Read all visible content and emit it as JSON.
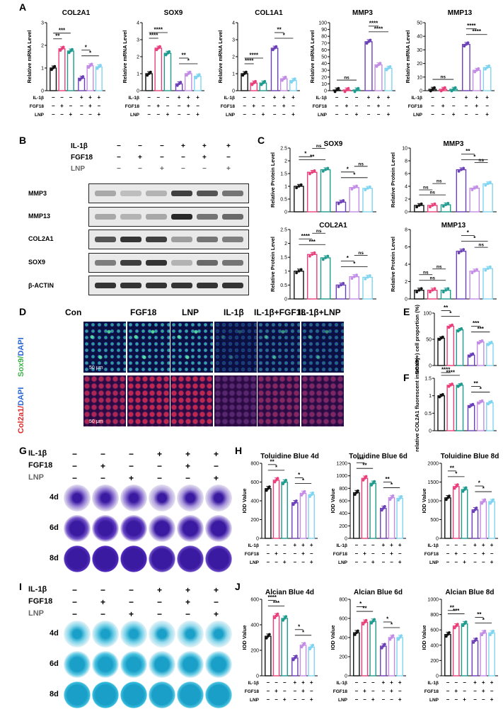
{
  "panel_letters": [
    "A",
    "B",
    "C",
    "D",
    "E",
    "F",
    "G",
    "H",
    "I",
    "J"
  ],
  "groups_short": [
    "",
    "",
    "",
    "",
    "",
    ""
  ],
  "row_labels": {
    "il1b": "IL-1β",
    "fgf18": "FGF18",
    "lnp": "LNP"
  },
  "signs": {
    "il1b": [
      "−",
      "−",
      "−",
      "+",
      "+",
      "+"
    ],
    "fgf18": [
      "−",
      "+",
      "−",
      "−",
      "+",
      "−"
    ],
    "lnp": [
      "−",
      "−",
      "+",
      "−",
      "−",
      "+"
    ]
  },
  "colors": [
    "#111111",
    "#e83f7b",
    "#1e9a8e",
    "#6b3fb8",
    "#c28be6",
    "#7fd4f0"
  ],
  "blot": {
    "labels": [
      "MMP3",
      "MMP13",
      "COL2A1",
      "SOX9",
      "β-ACTIN"
    ],
    "treat_rows": [
      "IL-1β",
      "FGF18",
      "LNP"
    ]
  },
  "panel_d": {
    "columns": [
      "Con",
      "FGF18",
      "LNP",
      "IL-1β",
      "IL-1β+FGF18",
      "IL-1β+LNP"
    ],
    "row1": [
      "Sox9/",
      "DAPI"
    ],
    "row2": [
      "Col2a1/",
      "DAPI"
    ],
    "scale1": "50 μm",
    "scale2": "50 μm"
  },
  "dish_rows": [
    "4d",
    "6d",
    "8d"
  ],
  "chart_data": [
    {
      "panel": "A",
      "type": "bar",
      "title": "COL2A1",
      "ylabel": "Relative mRNA Level",
      "ylim": [
        0,
        3
      ],
      "ticks": [
        0,
        1,
        2,
        3
      ],
      "values": [
        1.0,
        1.85,
        1.75,
        0.55,
        1.1,
        1.05
      ],
      "sig": [
        {
          "t": "**",
          "a": 0,
          "b": 1
        },
        {
          "t": "***",
          "a": 0,
          "b": 2
        },
        {
          "t": "*",
          "a": 3,
          "b": 5
        },
        {
          "t": "*",
          "a": 3,
          "b": 4
        }
      ]
    },
    {
      "panel": "A",
      "type": "bar",
      "title": "SOX9",
      "ylabel": "Relative mRNA Level",
      "ylim": [
        0,
        4
      ],
      "ticks": [
        0,
        1,
        2,
        3,
        4
      ],
      "values": [
        1.0,
        2.5,
        2.2,
        0.4,
        1.0,
        0.85
      ],
      "sig": [
        {
          "t": "****",
          "a": 0,
          "b": 1
        },
        {
          "t": "****",
          "a": 0,
          "b": 2
        },
        {
          "t": "*",
          "a": 3,
          "b": 5
        },
        {
          "t": "**",
          "a": 3,
          "b": 4
        }
      ]
    },
    {
      "panel": "A",
      "type": "bar",
      "title": "COL1A1",
      "ylabel": "Relative mRNA Level",
      "ylim": [
        0,
        4
      ],
      "ticks": [
        0,
        1,
        2,
        3,
        4
      ],
      "values": [
        1.0,
        0.45,
        0.45,
        2.5,
        0.7,
        0.6
      ],
      "sig": [
        {
          "t": "****",
          "a": 0,
          "b": 1
        },
        {
          "t": "****",
          "a": 0,
          "b": 2
        },
        {
          "t": "*",
          "a": 3,
          "b": 5
        },
        {
          "t": "**",
          "a": 3,
          "b": 4
        }
      ]
    },
    {
      "panel": "A",
      "type": "bar",
      "title": "MMP3",
      "ylabel": "Relative mRNA Level",
      "ylim": [
        0,
        100
      ],
      "ticks": [
        0,
        10,
        20,
        30,
        40,
        50,
        60,
        70,
        80,
        90,
        100
      ],
      "values": [
        1.0,
        1.0,
        1.0,
        72,
        38,
        33
      ],
      "sig": [
        {
          "t": "ns",
          "a": 0,
          "b": 2
        },
        {
          "t": "****",
          "a": 3,
          "b": 5
        },
        {
          "t": "****",
          "a": 3,
          "b": 4
        }
      ]
    },
    {
      "panel": "A",
      "type": "bar",
      "title": "MMP13",
      "ylabel": "Relative mRNA Level",
      "ylim": [
        0,
        50
      ],
      "ticks": [
        0,
        10,
        20,
        30,
        40,
        50
      ],
      "values": [
        1.0,
        1.0,
        1.0,
        34,
        15,
        17
      ],
      "sig": [
        {
          "t": "ns",
          "a": 0,
          "b": 2
        },
        {
          "t": "****",
          "a": 3,
          "b": 5
        },
        {
          "t": "****",
          "a": 3,
          "b": 4
        }
      ]
    },
    {
      "panel": "C",
      "type": "bar",
      "title": "SOX9",
      "ylabel": "Relative Protein Level",
      "ylim": [
        0,
        2.5
      ],
      "ticks": [
        0.0,
        0.5,
        1.0,
        1.5,
        2.0,
        2.5
      ],
      "values": [
        1.0,
        1.55,
        1.65,
        0.38,
        0.95,
        0.92
      ],
      "sig": [
        {
          "t": "**",
          "a": 0,
          "b": 2
        },
        {
          "t": "*",
          "a": 0,
          "b": 1
        },
        {
          "t": "ns",
          "a": 1,
          "b": 2
        },
        {
          "t": "*",
          "a": 3,
          "b": 5
        },
        {
          "t": "*",
          "a": 3,
          "b": 4
        },
        {
          "t": "ns",
          "a": 4,
          "b": 5
        }
      ]
    },
    {
      "panel": "C",
      "type": "bar",
      "title": "MMP3",
      "ylabel": "Relative Protein Level",
      "ylim": [
        0,
        10
      ],
      "ticks": [
        0,
        2,
        4,
        6,
        8,
        10
      ],
      "values": [
        1.0,
        1.0,
        1.1,
        6.6,
        3.7,
        4.4
      ],
      "sig": [
        {
          "t": "ns",
          "a": 0,
          "b": 2
        },
        {
          "t": "ns",
          "a": 0,
          "b": 1
        },
        {
          "t": "ns",
          "a": 1,
          "b": 2
        },
        {
          "t": "*",
          "a": 3,
          "b": 5
        },
        {
          "t": "**",
          "a": 3,
          "b": 4
        },
        {
          "t": "ns",
          "a": 4,
          "b": 5
        }
      ]
    },
    {
      "panel": "C",
      "type": "bar",
      "title": "COL2A1",
      "ylabel": "Relative Protein Level",
      "ylim": [
        0,
        2.5
      ],
      "ticks": [
        0.0,
        0.5,
        1.0,
        1.5,
        2.0,
        2.5
      ],
      "values": [
        1.0,
        1.6,
        1.48,
        0.5,
        0.8,
        0.78
      ],
      "sig": [
        {
          "t": "***",
          "a": 0,
          "b": 2
        },
        {
          "t": "****",
          "a": 0,
          "b": 1
        },
        {
          "t": "ns",
          "a": 1,
          "b": 2
        },
        {
          "t": "*",
          "a": 3,
          "b": 5
        },
        {
          "t": "*",
          "a": 3,
          "b": 4
        },
        {
          "t": "ns",
          "a": 4,
          "b": 5
        }
      ]
    },
    {
      "panel": "C",
      "type": "bar",
      "title": "MMP13",
      "ylabel": "Relative Protein Level",
      "ylim": [
        0,
        8
      ],
      "ticks": [
        0,
        2,
        4,
        6,
        8
      ],
      "values": [
        1.0,
        1.0,
        1.0,
        5.5,
        3.2,
        3.5
      ],
      "sig": [
        {
          "t": "ns",
          "a": 0,
          "b": 2
        },
        {
          "t": "ns",
          "a": 0,
          "b": 1
        },
        {
          "t": "ns",
          "a": 1,
          "b": 2
        },
        {
          "t": "*",
          "a": 3,
          "b": 5
        },
        {
          "t": "*",
          "a": 3,
          "b": 4
        },
        {
          "t": "ns",
          "a": 4,
          "b": 5
        }
      ]
    },
    {
      "panel": "E",
      "type": "bar",
      "title": "",
      "ylabel": "SOX9(+) cell proportion (%)",
      "ylim": [
        0,
        100
      ],
      "ticks": [
        0,
        50,
        100
      ],
      "values": [
        52,
        75,
        68,
        20,
        45,
        42
      ],
      "sig": [
        {
          "t": "*",
          "a": 0,
          "b": 2
        },
        {
          "t": "**",
          "a": 0,
          "b": 1
        },
        {
          "t": "***",
          "a": 3,
          "b": 5
        },
        {
          "t": "***",
          "a": 3,
          "b": 4
        }
      ]
    },
    {
      "panel": "F",
      "type": "bar",
      "title": "",
      "ylabel": "relative COL2A1 fluorescent intensity",
      "ylim": [
        0,
        1.5
      ],
      "ticks": [
        0.0,
        0.5,
        1.0,
        1.5
      ],
      "values": [
        1.0,
        1.3,
        1.3,
        0.72,
        0.82,
        0.8
      ],
      "sig": [
        {
          "t": "****",
          "a": 0,
          "b": 2
        },
        {
          "t": "****",
          "a": 0,
          "b": 1
        },
        {
          "t": "*",
          "a": 3,
          "b": 5
        },
        {
          "t": "**",
          "a": 3,
          "b": 4
        }
      ]
    },
    {
      "panel": "H",
      "type": "bar",
      "title": "Toluidine Blue 4d",
      "ylabel": "IOD Value",
      "ylim": [
        0,
        800
      ],
      "ticks": [
        0,
        200,
        400,
        600,
        800
      ],
      "values": [
        530,
        620,
        600,
        380,
        480,
        465
      ],
      "sig": [
        {
          "t": "*",
          "a": 0,
          "b": 2
        },
        {
          "t": "**",
          "a": 0,
          "b": 1
        },
        {
          "t": "*",
          "a": 3,
          "b": 5
        },
        {
          "t": "*",
          "a": 3,
          "b": 4
        }
      ]
    },
    {
      "panel": "H",
      "type": "bar",
      "title": "Toluidine Blue 6d",
      "ylabel": "IOD Value",
      "ylim": [
        0,
        1200
      ],
      "ticks": [
        0,
        200,
        400,
        600,
        800,
        1000,
        1200
      ],
      "values": [
        730,
        960,
        880,
        480,
        650,
        640
      ],
      "sig": [
        {
          "t": "**",
          "a": 0,
          "b": 2
        },
        {
          "t": "***",
          "a": 0,
          "b": 1
        },
        {
          "t": "*",
          "a": 3,
          "b": 5
        },
        {
          "t": "**",
          "a": 3,
          "b": 4
        }
      ]
    },
    {
      "panel": "H",
      "type": "bar",
      "title": "Toluidine Blue 8d",
      "ylabel": "IOD Value",
      "ylim": [
        0,
        2000
      ],
      "ticks": [
        0,
        500,
        1000,
        1500,
        2000
      ],
      "values": [
        1080,
        1380,
        1300,
        760,
        980,
        980
      ],
      "sig": [
        {
          "t": "*",
          "a": 0,
          "b": 2
        },
        {
          "t": "**",
          "a": 0,
          "b": 1
        },
        {
          "t": "*",
          "a": 3,
          "b": 5
        },
        {
          "t": "*",
          "a": 3,
          "b": 4
        }
      ]
    },
    {
      "panel": "J",
      "type": "bar",
      "title": "Alcian Blue 4d",
      "ylabel": "IOD Value",
      "ylim": [
        0,
        600
      ],
      "ticks": [
        0,
        200,
        400,
        600
      ],
      "values": [
        310,
        470,
        450,
        140,
        240,
        225
      ],
      "sig": [
        {
          "t": "***",
          "a": 0,
          "b": 2
        },
        {
          "t": "****",
          "a": 0,
          "b": 1
        },
        {
          "t": "*",
          "a": 3,
          "b": 5
        },
        {
          "t": "*",
          "a": 3,
          "b": 4
        }
      ]
    },
    {
      "panel": "J",
      "type": "bar",
      "title": "Alcian Blue 6d",
      "ylabel": "IOD Value",
      "ylim": [
        0,
        800
      ],
      "ticks": [
        0,
        200,
        400,
        600,
        800
      ],
      "values": [
        450,
        560,
        570,
        310,
        400,
        400
      ],
      "sig": [
        {
          "t": "**",
          "a": 0,
          "b": 2
        },
        {
          "t": "*",
          "a": 0,
          "b": 1
        },
        {
          "t": "*",
          "a": 3,
          "b": 5
        },
        {
          "t": "*",
          "a": 3,
          "b": 4
        }
      ]
    },
    {
      "panel": "J",
      "type": "bar",
      "title": "Alcian Blue 8d",
      "ylabel": "IOD Value",
      "ylim": [
        0,
        1000
      ],
      "ticks": [
        0,
        200,
        400,
        600,
        800,
        1000
      ],
      "values": [
        540,
        650,
        680,
        460,
        560,
        560
      ],
      "sig": [
        {
          "t": "***",
          "a": 0,
          "b": 2
        },
        {
          "t": "**",
          "a": 0,
          "b": 1
        },
        {
          "t": "*",
          "a": 3,
          "b": 5
        },
        {
          "t": "**",
          "a": 3,
          "b": 4
        }
      ]
    }
  ]
}
